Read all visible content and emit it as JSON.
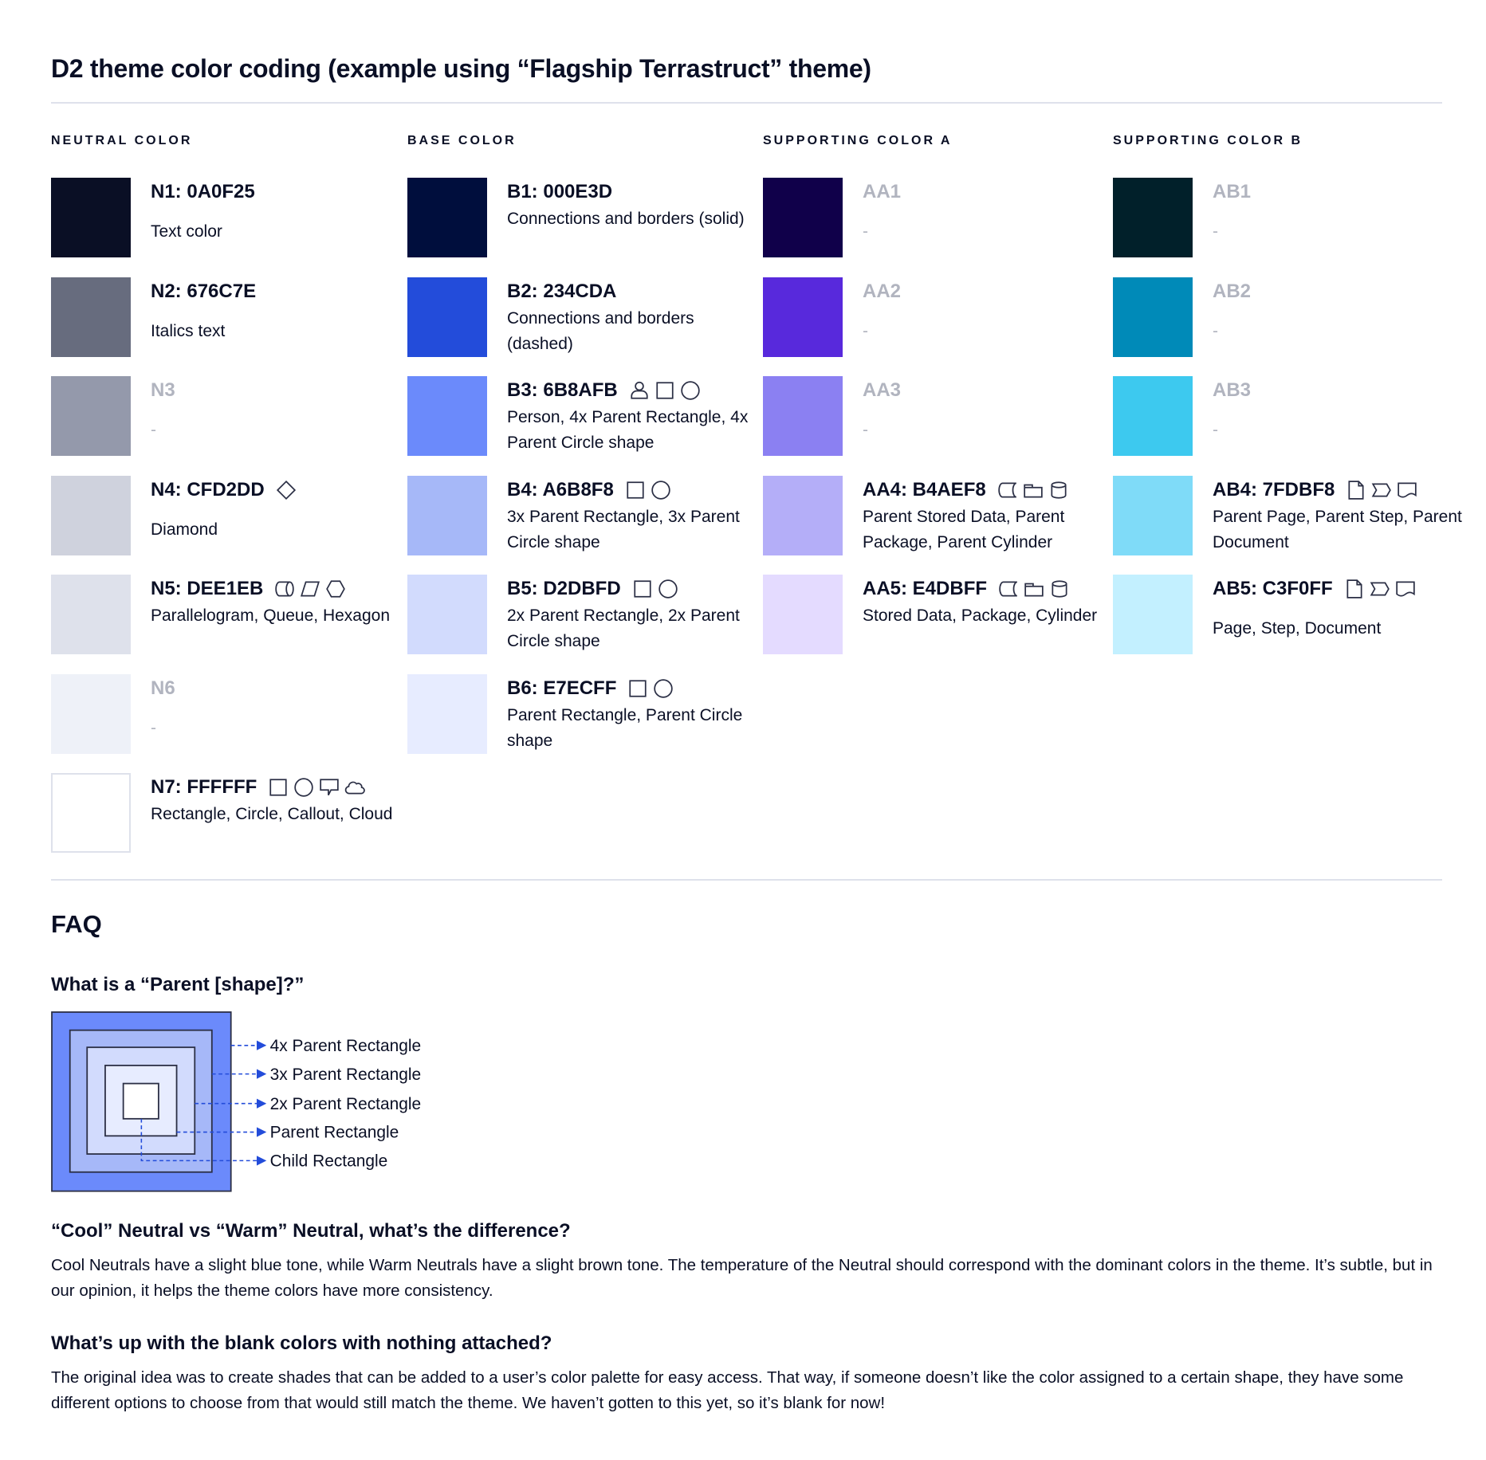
{
  "title": "D2 theme color coding (example using “Flagship Terrastruct” theme)",
  "columns": [
    {
      "heading": "NEUTRAL COLOR",
      "items": [
        {
          "name": "N1: 0A0F25",
          "color": "#0A0F25",
          "desc": "Text color",
          "icons": [],
          "blank": false
        },
        {
          "name": "N2: 676C7E",
          "color": "#676C7E",
          "desc": "Italics text",
          "icons": [],
          "blank": false
        },
        {
          "name": "N3",
          "color": "#9499AB",
          "desc": "-",
          "icons": [],
          "blank": true
        },
        {
          "name": "N4: CFD2DD",
          "color": "#CFD2DD",
          "desc": "Diamond",
          "icons": [
            "diamond"
          ],
          "blank": false
        },
        {
          "name": "N5: DEE1EB",
          "color": "#DEE1EB",
          "desc": "Parallelogram, Queue, Hexagon",
          "icons": [
            "queue",
            "parallelogram",
            "hexagon"
          ],
          "blank": false,
          "multiline": true
        },
        {
          "name": "N6",
          "color": "#EEF1F8",
          "desc": "-",
          "icons": [],
          "blank": true
        },
        {
          "name": "N7: FFFFFF",
          "color": "#FFFFFF",
          "desc": "Rectangle, Circle, Callout, Cloud",
          "icons": [
            "rectangle",
            "circle",
            "callout",
            "cloud"
          ],
          "blank": false,
          "multiline": true
        }
      ]
    },
    {
      "heading": "BASE COLOR",
      "items": [
        {
          "name": "B1: 000E3D",
          "color": "#000E3D",
          "desc": "Connections and borders (solid)",
          "icons": [],
          "blank": false,
          "multiline": true
        },
        {
          "name": "B2: 234CDA",
          "color": "#234CDA",
          "desc": "Connections and borders (dashed)",
          "icons": [],
          "blank": false,
          "multiline": true
        },
        {
          "name": "B3: 6B8AFB",
          "color": "#6B8AFB",
          "desc": "Person, 4x Parent Rectangle, 4x Parent Circle shape",
          "icons": [
            "person",
            "rectangle",
            "circle"
          ],
          "blank": false,
          "multiline": true
        },
        {
          "name": "B4: A6B8F8",
          "color": "#A6B8F8",
          "desc": "3x Parent Rectangle, 3x Parent Circle shape",
          "icons": [
            "rectangle",
            "circle"
          ],
          "blank": false,
          "multiline": true
        },
        {
          "name": "B5: D2DBFD",
          "color": "#D2DBFD",
          "desc": "2x Parent Rectangle, 2x Parent Circle shape",
          "icons": [
            "rectangle",
            "circle"
          ],
          "blank": false,
          "multiline": true
        },
        {
          "name": "B6: E7ECFF",
          "color": "#E7ECFF",
          "desc": "Parent Rectangle, Parent Circle shape",
          "icons": [
            "rectangle",
            "circle"
          ],
          "blank": false,
          "multiline": true
        }
      ]
    },
    {
      "heading": "SUPPORTING COLOR A",
      "items": [
        {
          "name": "AA1",
          "color": "#10004A",
          "desc": "-",
          "icons": [],
          "blank": true
        },
        {
          "name": "AA2",
          "color": "#5829DC",
          "desc": "-",
          "icons": [],
          "blank": true
        },
        {
          "name": "AA3",
          "color": "#8B80F2",
          "desc": "-",
          "icons": [],
          "blank": true
        },
        {
          "name": "AA4: B4AEF8",
          "color": "#B4AEF8",
          "desc": "Parent Stored Data, Parent Package,  Parent Cylinder",
          "icons": [
            "stored-data",
            "package",
            "cylinder"
          ],
          "blank": false,
          "multiline": true
        },
        {
          "name": "AA5: E4DBFF",
          "color": "#E4DBFF",
          "desc": "Stored Data, Package, Cylinder",
          "icons": [
            "stored-data",
            "package",
            "cylinder"
          ],
          "blank": false,
          "multiline": true
        }
      ]
    },
    {
      "heading": "SUPPORTING COLOR B",
      "items": [
        {
          "name": "AB1",
          "color": "#01202A",
          "desc": "-",
          "icons": [],
          "blank": true
        },
        {
          "name": "AB2",
          "color": "#008AB8",
          "desc": "-",
          "icons": [],
          "blank": true
        },
        {
          "name": "AB3",
          "color": "#3DC9EF",
          "desc": "-",
          "icons": [],
          "blank": true
        },
        {
          "name": "AB4: 7FDBF8",
          "color": "#7FDBF8",
          "desc": "Parent Page, Parent Step, Parent Document",
          "icons": [
            "page",
            "step",
            "document"
          ],
          "blank": false,
          "multiline": true
        },
        {
          "name": "AB5: C3F0FF",
          "color": "#C3F0FF",
          "desc": "Page, Step, Document",
          "icons": [
            "page",
            "step",
            "document"
          ],
          "blank": false
        }
      ]
    }
  ],
  "faq": {
    "title": "FAQ",
    "q1": "What is a “Parent [shape]?”",
    "diagram_labels": [
      "4x Parent Rectangle",
      "3x Parent Rectangle",
      "2x Parent Rectangle",
      "Parent Rectangle",
      "Child Rectangle"
    ],
    "diagram_colors": [
      "#6B8AFB",
      "#A6B8F8",
      "#D2DBFD",
      "#E7ECFF",
      "#FFFFFF"
    ],
    "arrow_color": "#234CDA",
    "q2": "“Cool” Neutral vs “Warm” Neutral, what’s the difference?",
    "a2": "Cool Neutrals have a slight blue tone, while Warm Neutrals have a slight brown tone. The temperature of the Neutral should correspond with the dominant colors in the theme. It’s subtle, but in our opinion, it helps the theme colors have more consistency.",
    "q3": "What’s up with the blank colors with nothing attached?",
    "a3": "The original idea was to create shades that can be added to a user’s color palette for easy access. That way, if someone doesn’t like the color assigned to a certain shape, they have some different options to choose from that would still match the theme. We haven’t gotten to this yet, so it’s blank for now!"
  }
}
